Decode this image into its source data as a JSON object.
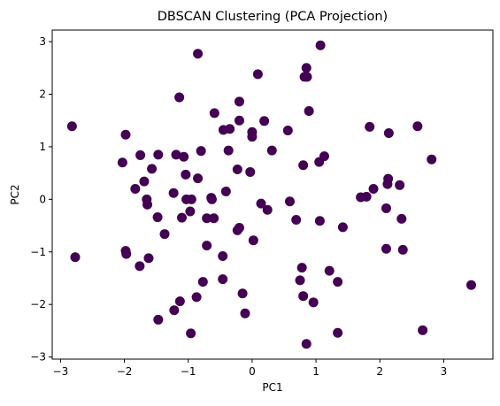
{
  "chart_data": {
    "type": "scatter",
    "title": "DBSCAN Clustering (PCA Projection)",
    "xlabel": "PC1",
    "ylabel": "PC2",
    "xlim": [
      -3.13,
      3.77
    ],
    "ylim": [
      -3.04,
      3.22
    ],
    "xticks": [
      -3,
      -2,
      -1,
      0,
      1,
      2,
      3
    ],
    "yticks": [
      -3,
      -2,
      -1,
      0,
      1,
      2,
      3
    ],
    "grid": false,
    "marker_color": "#440154",
    "points": [
      {
        "x": -2.82,
        "y": 1.39
      },
      {
        "x": -2.77,
        "y": -1.1
      },
      {
        "x": -2.03,
        "y": 0.7
      },
      {
        "x": -1.98,
        "y": 1.23
      },
      {
        "x": -1.98,
        "y": -0.98
      },
      {
        "x": -1.97,
        "y": -1.04
      },
      {
        "x": -1.83,
        "y": 0.2
      },
      {
        "x": -1.76,
        "y": -1.27
      },
      {
        "x": -1.75,
        "y": 0.84
      },
      {
        "x": -1.69,
        "y": 0.34
      },
      {
        "x": -1.65,
        "y": 0.0
      },
      {
        "x": -1.64,
        "y": -0.1
      },
      {
        "x": -1.62,
        "y": -1.12
      },
      {
        "x": -1.57,
        "y": 0.58
      },
      {
        "x": -1.48,
        "y": -0.34
      },
      {
        "x": -1.47,
        "y": 0.85
      },
      {
        "x": -1.47,
        "y": -2.29
      },
      {
        "x": -1.37,
        "y": -0.66
      },
      {
        "x": -1.23,
        "y": 0.12
      },
      {
        "x": -1.22,
        "y": -2.11
      },
      {
        "x": -1.19,
        "y": 0.85
      },
      {
        "x": -1.14,
        "y": 1.94
      },
      {
        "x": -1.13,
        "y": -1.94
      },
      {
        "x": -1.1,
        "y": -0.35
      },
      {
        "x": -1.07,
        "y": 0.81
      },
      {
        "x": -1.04,
        "y": 0.47
      },
      {
        "x": -1.03,
        "y": 0.0
      },
      {
        "x": -0.97,
        "y": -0.23
      },
      {
        "x": -0.96,
        "y": -2.55
      },
      {
        "x": -0.95,
        "y": 0.0
      },
      {
        "x": -0.87,
        "y": -1.86
      },
      {
        "x": -0.85,
        "y": 0.4
      },
      {
        "x": -0.85,
        "y": 2.77
      },
      {
        "x": -0.8,
        "y": 0.92
      },
      {
        "x": -0.77,
        "y": -1.57
      },
      {
        "x": -0.71,
        "y": -0.36
      },
      {
        "x": -0.71,
        "y": -0.88
      },
      {
        "x": -0.64,
        "y": 0.03
      },
      {
        "x": -0.63,
        "y": 0.0
      },
      {
        "x": -0.6,
        "y": -0.36
      },
      {
        "x": -0.59,
        "y": 1.64
      },
      {
        "x": -0.46,
        "y": -1.52
      },
      {
        "x": -0.46,
        "y": -1.08
      },
      {
        "x": -0.45,
        "y": 1.32
      },
      {
        "x": -0.41,
        "y": 0.15
      },
      {
        "x": -0.37,
        "y": 0.93
      },
      {
        "x": -0.35,
        "y": 1.34
      },
      {
        "x": -0.23,
        "y": 0.57
      },
      {
        "x": -0.23,
        "y": -0.59
      },
      {
        "x": -0.2,
        "y": -0.54
      },
      {
        "x": -0.2,
        "y": 1.86
      },
      {
        "x": -0.2,
        "y": 1.5
      },
      {
        "x": -0.15,
        "y": -1.79
      },
      {
        "x": -0.11,
        "y": -2.17
      },
      {
        "x": -0.03,
        "y": 0.52
      },
      {
        "x": 0.0,
        "y": 1.19
      },
      {
        "x": 0.0,
        "y": 1.28
      },
      {
        "x": 0.02,
        "y": -0.78
      },
      {
        "x": 0.09,
        "y": 2.38
      },
      {
        "x": 0.14,
        "y": -0.08
      },
      {
        "x": 0.19,
        "y": 1.49
      },
      {
        "x": 0.24,
        "y": -0.2
      },
      {
        "x": 0.31,
        "y": 0.93
      },
      {
        "x": 0.56,
        "y": 1.31
      },
      {
        "x": 0.59,
        "y": -0.04
      },
      {
        "x": 0.69,
        "y": -0.39
      },
      {
        "x": 0.75,
        "y": -1.54
      },
      {
        "x": 0.78,
        "y": -1.3
      },
      {
        "x": 0.8,
        "y": -1.84
      },
      {
        "x": 0.8,
        "y": 0.65
      },
      {
        "x": 0.82,
        "y": 2.33
      },
      {
        "x": 0.85,
        "y": -2.75
      },
      {
        "x": 0.85,
        "y": 2.5
      },
      {
        "x": 0.86,
        "y": 2.33
      },
      {
        "x": 0.89,
        "y": 1.68
      },
      {
        "x": 0.96,
        "y": -1.96
      },
      {
        "x": 1.05,
        "y": 0.71
      },
      {
        "x": 1.06,
        "y": -0.41
      },
      {
        "x": 1.07,
        "y": 2.93
      },
      {
        "x": 1.13,
        "y": 0.82
      },
      {
        "x": 1.21,
        "y": -1.36
      },
      {
        "x": 1.34,
        "y": -1.57
      },
      {
        "x": 1.34,
        "y": -2.54
      },
      {
        "x": 1.42,
        "y": -0.53
      },
      {
        "x": 1.7,
        "y": 0.04
      },
      {
        "x": 1.79,
        "y": 0.05
      },
      {
        "x": 1.84,
        "y": 1.38
      },
      {
        "x": 1.9,
        "y": 0.2
      },
      {
        "x": 2.1,
        "y": -0.94
      },
      {
        "x": 2.1,
        "y": -0.17
      },
      {
        "x": 2.12,
        "y": 0.29
      },
      {
        "x": 2.13,
        "y": 0.39
      },
      {
        "x": 2.14,
        "y": 1.26
      },
      {
        "x": 2.31,
        "y": 0.27
      },
      {
        "x": 2.34,
        "y": -0.37
      },
      {
        "x": 2.36,
        "y": -0.96
      },
      {
        "x": 2.59,
        "y": 1.39
      },
      {
        "x": 2.67,
        "y": -2.49
      },
      {
        "x": 2.81,
        "y": 0.76
      },
      {
        "x": 3.43,
        "y": -1.63
      }
    ]
  }
}
